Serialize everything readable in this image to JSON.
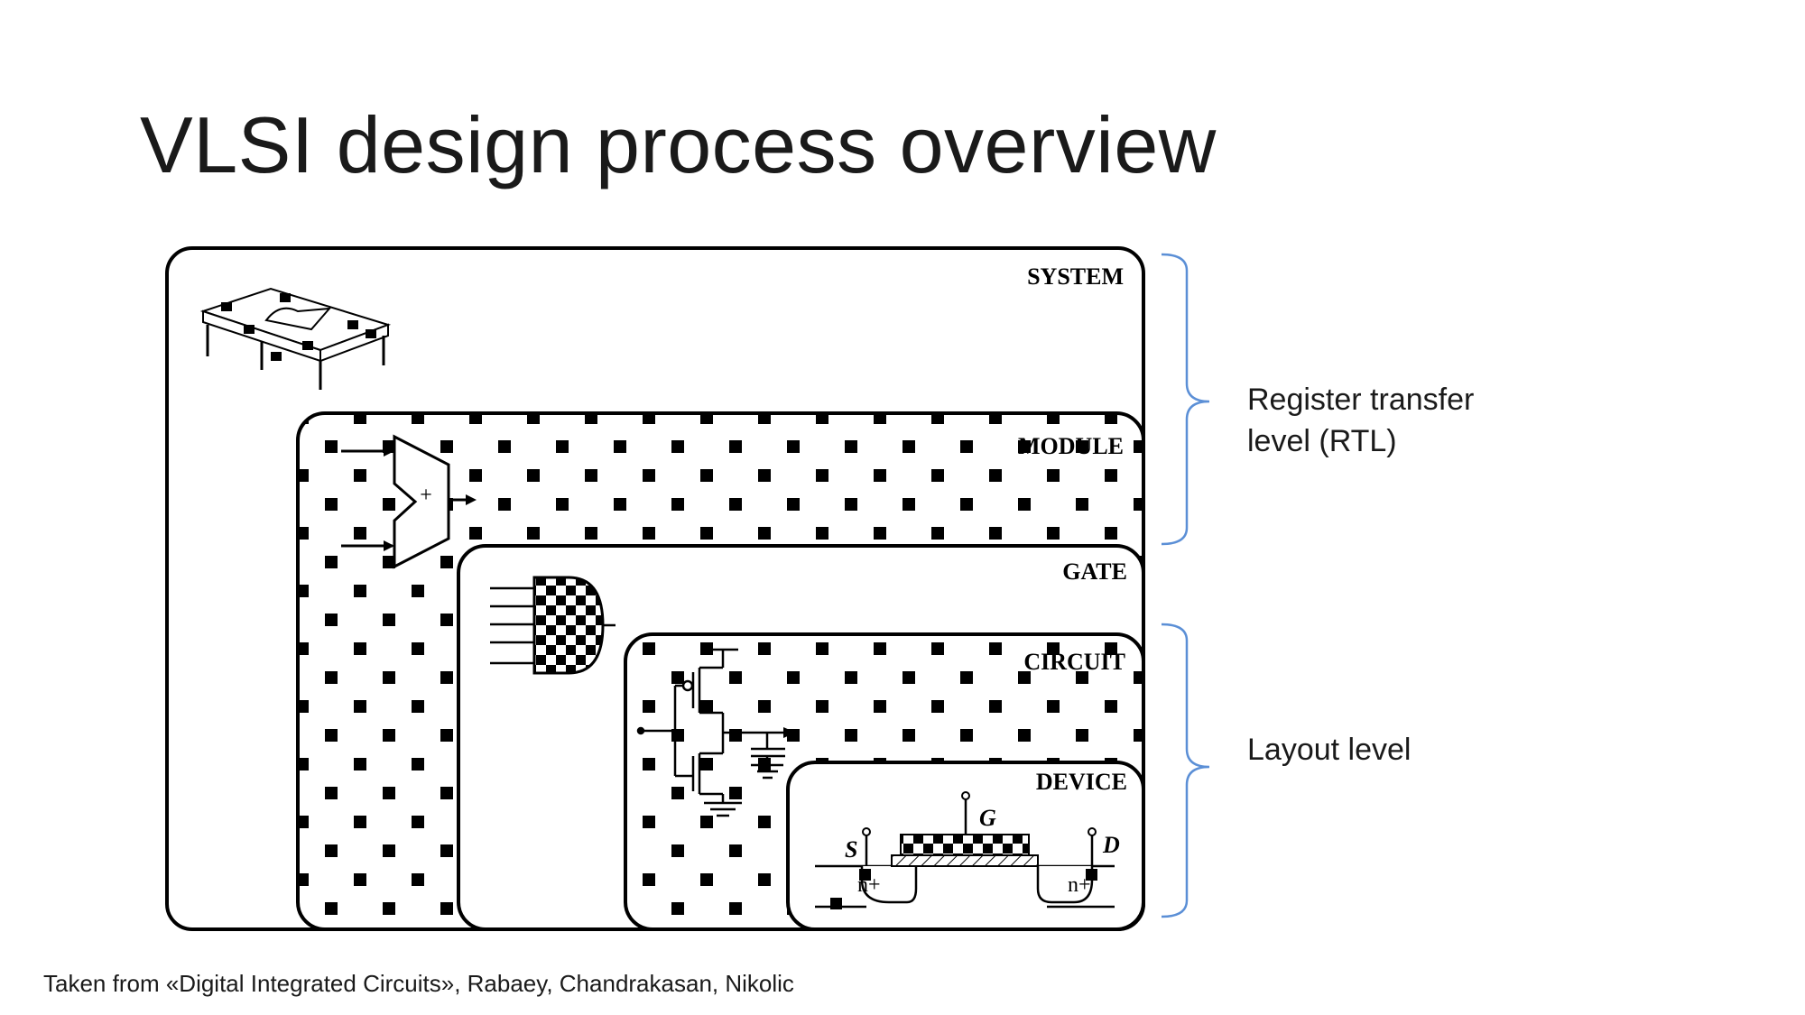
{
  "slide": {
    "title": "VLSI design process overview",
    "caption": "Taken from «Digital Integrated Circuits», Rabaey, Chandrakasan, Nikolic"
  },
  "diagram": {
    "levels": {
      "system": "SYSTEM",
      "module": "MODULE",
      "gate": "GATE",
      "circuit": "CIRCUIT",
      "device": "DEVICE"
    },
    "adder_symbol": "+",
    "device_terminals": {
      "source": "S",
      "gate": "G",
      "drain": "D"
    },
    "doping": {
      "left": "n+",
      "right": "n+"
    },
    "brace_color": "#5b8fd6"
  },
  "annotations": {
    "rtl_line1": "Register transfer",
    "rtl_line2": "level (RTL)",
    "layout": "Layout level"
  }
}
